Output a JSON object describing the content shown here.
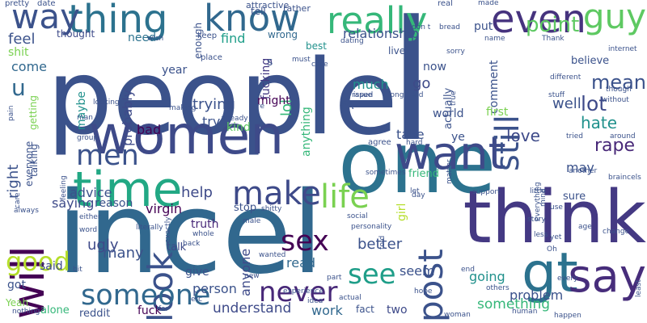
{
  "words": [
    {
      "text": "people",
      "color": "#3b528b"
    },
    {
      "text": "incel",
      "color": "#31688e"
    },
    {
      "text": "women",
      "color": "#3e4a89"
    },
    {
      "text": "one",
      "color": "#2c728e"
    },
    {
      "text": "l",
      "color": "#3b528b"
    },
    {
      "text": "think",
      "color": "#443983"
    },
    {
      "text": "thing",
      "color": "#2c728e"
    },
    {
      "text": "know",
      "color": "#31688e"
    },
    {
      "text": "really",
      "color": "#35b779"
    },
    {
      "text": "even",
      "color": "#46337e"
    },
    {
      "text": "guy",
      "color": "#5ec962"
    },
    {
      "text": "way",
      "color": "#3b528b"
    },
    {
      "text": "time",
      "color": "#22a884"
    },
    {
      "text": "want",
      "color": "#3e4a89"
    },
    {
      "text": "gt",
      "color": "#2c728e"
    },
    {
      "text": "say",
      "color": "#472d7b"
    },
    {
      "text": "will",
      "color": "#440154"
    },
    {
      "text": "make",
      "color": "#3e4a89"
    },
    {
      "text": "men",
      "color": "#3b528b"
    },
    {
      "text": "life",
      "color": "#7ad151"
    },
    {
      "text": "look",
      "color": "#3b528b"
    },
    {
      "text": "sex",
      "color": "#440154"
    },
    {
      "text": "post",
      "color": "#3b528b"
    },
    {
      "text": "good",
      "color": "#b5de2b"
    },
    {
      "text": "someone",
      "color": "#31688e"
    },
    {
      "text": "never",
      "color": "#482878"
    },
    {
      "text": "see",
      "color": "#1f9e89"
    },
    {
      "text": "u",
      "color": "#31688e"
    },
    {
      "text": "still",
      "color": "#3b528b"
    },
    {
      "text": "point",
      "color": "#5ec962"
    },
    {
      "text": "mean",
      "color": "#3b528b"
    },
    {
      "text": "lot",
      "color": "#3e4a89"
    },
    {
      "text": "hate",
      "color": "#21918c"
    },
    {
      "text": "rape",
      "color": "#482878"
    },
    {
      "text": "love",
      "color": "#3e4a89"
    },
    {
      "text": "right",
      "color": "#3b528b"
    },
    {
      "text": "feel",
      "color": "#3b528b"
    },
    {
      "text": "shit",
      "color": "#7ad151"
    },
    {
      "text": "come",
      "color": "#31688e"
    },
    {
      "text": "relationship",
      "color": "#3b528b"
    },
    {
      "text": "thought",
      "color": "#3e4a89"
    },
    {
      "text": "need",
      "color": "#2c728e"
    },
    {
      "text": "find",
      "color": "#1f9e89"
    },
    {
      "text": "maybe",
      "color": "#21918c"
    },
    {
      "text": "probably",
      "color": "#3e4a89"
    },
    {
      "text": "year",
      "color": "#3b528b"
    },
    {
      "text": "fucking",
      "color": "#443983"
    },
    {
      "text": "lol",
      "color": "#35b779"
    },
    {
      "text": "might",
      "color": "#440154"
    },
    {
      "text": "trying",
      "color": "#3b528b"
    },
    {
      "text": "bad",
      "color": "#440154"
    },
    {
      "text": "try",
      "color": "#3b528b"
    },
    {
      "text": "kind",
      "color": "#5ec962"
    },
    {
      "text": "help",
      "color": "#3e4a89"
    },
    {
      "text": "virgin",
      "color": "#440154"
    },
    {
      "text": "advice",
      "color": "#3b528b"
    },
    {
      "text": "saying",
      "color": "#3e4a89"
    },
    {
      "text": "reason",
      "color": "#3b528b"
    },
    {
      "text": "truth",
      "color": "#482878"
    },
    {
      "text": "stop",
      "color": "#3b528b"
    },
    {
      "text": "ugly",
      "color": "#3e4a89"
    },
    {
      "text": "many",
      "color": "#3b528b"
    },
    {
      "text": "said",
      "color": "#3e4a89"
    },
    {
      "text": "got",
      "color": "#3b528b"
    },
    {
      "text": "talk",
      "color": "#3e4a89"
    },
    {
      "text": "give",
      "color": "#3b528b"
    },
    {
      "text": "person",
      "color": "#3b528b"
    },
    {
      "text": "anyone",
      "color": "#3e4a89"
    },
    {
      "text": "read",
      "color": "#31688e"
    },
    {
      "text": "better",
      "color": "#3b528b"
    },
    {
      "text": "seem",
      "color": "#3b528b"
    },
    {
      "text": "going",
      "color": "#21918c"
    },
    {
      "text": "problem",
      "color": "#3b528b"
    },
    {
      "text": "something",
      "color": "#35b779"
    },
    {
      "text": "understand",
      "color": "#3e4a89"
    },
    {
      "text": "work",
      "color": "#31688e"
    },
    {
      "text": "fact",
      "color": "#3b528b"
    },
    {
      "text": "two",
      "color": "#3e4a89"
    },
    {
      "text": "fuck",
      "color": "#440154"
    },
    {
      "text": "reddit",
      "color": "#3b528b"
    },
    {
      "text": "alone",
      "color": "#35b779"
    },
    {
      "text": "Yeah",
      "color": "#7ad151"
    },
    {
      "text": "much",
      "color": "#21918c"
    },
    {
      "text": "go",
      "color": "#3e4a89"
    },
    {
      "text": "actually",
      "color": "#3b528b"
    },
    {
      "text": "anything",
      "color": "#35b779"
    },
    {
      "text": "live",
      "color": "#3b528b"
    },
    {
      "text": "now",
      "color": "#3b528b"
    },
    {
      "text": "comment",
      "color": "#3b528b"
    },
    {
      "text": "well",
      "color": "#3b528b"
    },
    {
      "text": "believe",
      "color": "#3b528b"
    },
    {
      "text": "world",
      "color": "#3b528b"
    },
    {
      "text": "first",
      "color": "#7ad151"
    },
    {
      "text": "take",
      "color": "#3b528b"
    },
    {
      "text": "ye",
      "color": "#3b528b"
    },
    {
      "text": "friend",
      "color": "#35b779"
    },
    {
      "text": "girl",
      "color": "#b5de2b"
    },
    {
      "text": "may",
      "color": "#3b528b"
    },
    {
      "text": "put",
      "color": "#3b528b"
    },
    {
      "text": "s",
      "color": "#3b528b"
    },
    {
      "text": "FA",
      "color": "#3b528b"
    },
    {
      "text": "everyone",
      "color": "#3b528b"
    },
    {
      "text": "getting",
      "color": "#7ad151"
    },
    {
      "text": "sure",
      "color": "#3b528b"
    },
    {
      "text": "wrong",
      "color": "#31688e"
    },
    {
      "text": "best",
      "color": "#21918c"
    },
    {
      "text": "enough",
      "color": "#3b528b"
    },
    {
      "text": "tell",
      "color": "#3b528b"
    },
    {
      "text": "rather",
      "color": "#3b528b"
    },
    {
      "text": "attractive",
      "color": "#3b528b"
    },
    {
      "text": "real",
      "color": "#3b528b"
    },
    {
      "text": "pretty",
      "color": "#3b528b"
    },
    {
      "text": "date",
      "color": "#3b528b"
    },
    {
      "text": "wish",
      "color": "#3b528b"
    },
    {
      "text": "keep",
      "color": "#3b528b"
    },
    {
      "text": "place",
      "color": "#3b528b"
    },
    {
      "text": "must",
      "color": "#3b528b"
    },
    {
      "text": "raped",
      "color": "#3b528b"
    },
    {
      "text": "issue",
      "color": "#3b528b"
    },
    {
      "text": "long",
      "color": "#3b528b"
    },
    {
      "text": "kid",
      "color": "#3b528b"
    },
    {
      "text": "agree",
      "color": "#3b528b"
    },
    {
      "text": "hard",
      "color": "#3b528b"
    },
    {
      "text": "different",
      "color": "#3b528b"
    },
    {
      "text": "Thank",
      "color": "#3b528b"
    },
    {
      "text": "internet",
      "color": "#3b528b"
    },
    {
      "text": "though",
      "color": "#3b528b"
    },
    {
      "text": "without",
      "color": "#3b528b"
    },
    {
      "text": "stuff",
      "color": "#3b528b"
    },
    {
      "text": "tried",
      "color": "#3b528b"
    },
    {
      "text": "around",
      "color": "#3b528b"
    },
    {
      "text": "another",
      "color": "#3b528b"
    },
    {
      "text": "braincels",
      "color": "#3b528b"
    },
    {
      "text": "change",
      "color": "#3b528b"
    },
    {
      "text": "age",
      "color": "#3b528b"
    },
    {
      "text": "yet",
      "color": "#3b528b"
    },
    {
      "text": "less",
      "color": "#3b528b"
    },
    {
      "text": "Oh",
      "color": "#3b528b"
    },
    {
      "text": "every",
      "color": "#3b528b"
    },
    {
      "text": "end",
      "color": "#3b528b"
    },
    {
      "text": "hope",
      "color": "#3b528b"
    },
    {
      "text": "others",
      "color": "#3b528b"
    },
    {
      "text": "woman",
      "color": "#3b528b"
    },
    {
      "text": "human",
      "color": "#3b528b"
    },
    {
      "text": "happen",
      "color": "#3b528b"
    },
    {
      "text": "experience",
      "color": "#3b528b"
    },
    {
      "text": "social",
      "color": "#3b528b"
    },
    {
      "text": "idea",
      "color": "#3b528b"
    },
    {
      "text": "shitty",
      "color": "#3b528b"
    },
    {
      "text": "male",
      "color": "#3b528b"
    },
    {
      "text": "back",
      "color": "#3b528b"
    },
    {
      "text": "whole",
      "color": "#3b528b"
    },
    {
      "text": "new",
      "color": "#3b528b"
    },
    {
      "text": "wanted",
      "color": "#3b528b"
    },
    {
      "text": "far",
      "color": "#3b528b"
    },
    {
      "text": "etc",
      "color": "#3b528b"
    },
    {
      "text": "literally",
      "color": "#3b528b"
    },
    {
      "text": "either",
      "color": "#3b528b"
    },
    {
      "text": "word",
      "color": "#3b528b"
    },
    {
      "text": "bit",
      "color": "#3b528b"
    },
    {
      "text": "nothing",
      "color": "#3b528b"
    },
    {
      "text": "always",
      "color": "#3b528b"
    },
    {
      "text": "care",
      "color": "#3b528b"
    },
    {
      "text": "group",
      "color": "#3b528b"
    },
    {
      "text": "man",
      "color": "#3b528b"
    },
    {
      "text": "looking",
      "color": "#3b528b"
    },
    {
      "text": "pain",
      "color": "#3b528b"
    },
    {
      "text": "feeling",
      "color": "#3b528b"
    },
    {
      "text": "making",
      "color": "#3b528b"
    },
    {
      "text": "already",
      "color": "#3b528b"
    },
    {
      "text": "re",
      "color": "#3b528b"
    },
    {
      "text": "case",
      "color": "#3b528b"
    },
    {
      "text": "dating",
      "color": "#3b528b"
    },
    {
      "text": "don t",
      "color": "#3b528b"
    },
    {
      "text": "bread",
      "color": "#3b528b"
    },
    {
      "text": "made",
      "color": "#3b528b"
    },
    {
      "text": "name",
      "color": "#3b528b"
    },
    {
      "text": "sorry",
      "color": "#3b528b"
    },
    {
      "text": "true",
      "color": "#3b528b"
    },
    {
      "text": "little",
      "color": "#3b528b"
    },
    {
      "text": "sometimes",
      "color": "#3b528b"
    },
    {
      "text": "matter",
      "color": "#3b528b"
    },
    {
      "text": "let",
      "color": "#3b528b"
    },
    {
      "text": "support",
      "color": "#3b528b"
    },
    {
      "text": "everything",
      "color": "#3b528b"
    },
    {
      "text": "mind",
      "color": "#3b528b"
    },
    {
      "text": "story",
      "color": "#3b528b"
    },
    {
      "text": "use",
      "color": "#3b528b"
    },
    {
      "text": "day",
      "color": "#3b528b"
    },
    {
      "text": "personality",
      "color": "#3b528b"
    },
    {
      "text": "told",
      "color": "#3b528b"
    },
    {
      "text": "least",
      "color": "#3b528b"
    },
    {
      "text": "actual",
      "color": "#3b528b"
    },
    {
      "text": "part",
      "color": "#3b528b"
    },
    {
      "text": "exactly",
      "color": "#3b528b"
    },
    {
      "text": "talking",
      "color": "#3b528b"
    },
    {
      "text": "telling",
      "color": "#3b528b"
    },
    {
      "text": "OP",
      "color": "#3b528b"
    },
    {
      "text": "away",
      "color": "#3b528b"
    },
    {
      "text": "become",
      "color": "#3b528b"
    },
    {
      "text": "everyone",
      "color": "#3b528b"
    }
  ]
}
